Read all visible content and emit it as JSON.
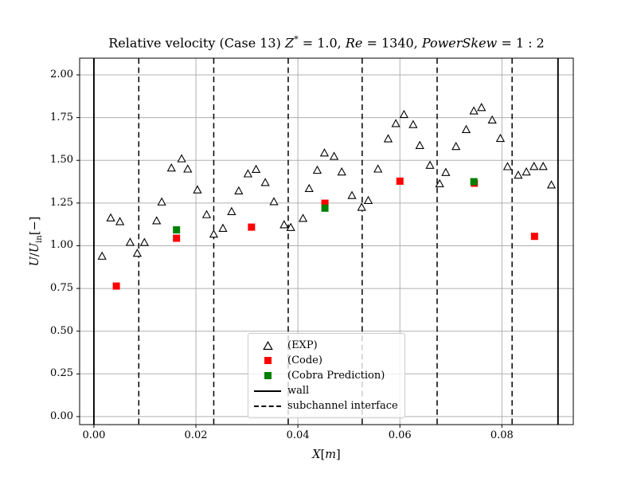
{
  "title": {
    "text": "Relative velocity (Case 13) Z* = 1.0, Re = 1340, PowerSkew = 1:2",
    "parts": [
      {
        "t": "Relative velocity (Case 13) "
      },
      {
        "t": "Z",
        "i": 1
      },
      {
        "t": "*",
        "sup": 1
      },
      {
        "t": " = 1.0, "
      },
      {
        "t": "Re",
        "i": 1
      },
      {
        "t": " = 1340, "
      },
      {
        "t": "PowerSkew",
        "i": 1
      },
      {
        "t": " = 1 : 2"
      }
    ]
  },
  "legend": {
    "items": [
      {
        "label": "(EXP)",
        "marker": "open-triangle"
      },
      {
        "label": "(Code)",
        "marker": "red-square"
      },
      {
        "label": "(Cobra Prediction)",
        "marker": "green-square"
      },
      {
        "label": "wall",
        "marker": "solid-line"
      },
      {
        "label": "subchannel interface",
        "marker": "dashed-line"
      }
    ]
  },
  "chart_data": {
    "type": "scatter",
    "title": "Relative velocity (Case 13) Z* = 1.0, Re = 1340, PowerSkew = 1:2",
    "xlabel": "X[m]",
    "ylabel": "U/U_in[−]",
    "xlim": [
      -0.0028,
      0.094
    ],
    "ylim": [
      -0.047,
      2.098
    ],
    "grid": true,
    "x_ticks": [
      0.0,
      0.02,
      0.04,
      0.06,
      0.08
    ],
    "y_ticks": [
      0.0,
      0.25,
      0.5,
      0.75,
      1.0,
      1.25,
      1.5,
      1.75,
      2.0
    ],
    "x_tick_labels": [
      "0.00",
      "0.02",
      "0.04",
      "0.06",
      "0.08"
    ],
    "y_tick_labels": [
      "0.00",
      "0.25",
      "0.50",
      "0.75",
      "1.00",
      "1.25",
      "1.50",
      "1.75",
      "2.00"
    ],
    "colors": {
      "grid": "#b0b0b0",
      "exp": "#000000",
      "code": "#ff0000",
      "cobra": "#008000",
      "wall": "#000000"
    },
    "vlines": {
      "wall": {
        "style": "solid",
        "x": [
          0.0,
          0.091
        ]
      },
      "subchannel_interface": {
        "style": "dashed",
        "x": [
          0.0088,
          0.0235,
          0.0381,
          0.0526,
          0.0673,
          0.082
        ]
      }
    },
    "series": [
      {
        "name": "(EXP)",
        "marker": "open-triangle",
        "color": "#000000",
        "points": [
          [
            0.0016,
            0.938
          ],
          [
            0.0033,
            1.162
          ],
          [
            0.0051,
            1.14
          ],
          [
            0.0071,
            1.019
          ],
          [
            0.0085,
            0.955
          ],
          [
            0.0099,
            1.018
          ],
          [
            0.0123,
            1.145
          ],
          [
            0.0133,
            1.255
          ],
          [
            0.0152,
            1.454
          ],
          [
            0.0172,
            1.508
          ],
          [
            0.0184,
            1.448
          ],
          [
            0.0203,
            1.326
          ],
          [
            0.0221,
            1.181
          ],
          [
            0.0235,
            1.067
          ],
          [
            0.0253,
            1.101
          ],
          [
            0.027,
            1.199
          ],
          [
            0.0284,
            1.32
          ],
          [
            0.0302,
            1.42
          ],
          [
            0.0318,
            1.446
          ],
          [
            0.0336,
            1.369
          ],
          [
            0.0353,
            1.257
          ],
          [
            0.0373,
            1.122
          ],
          [
            0.0386,
            1.106
          ],
          [
            0.041,
            1.159
          ],
          [
            0.0422,
            1.334
          ],
          [
            0.0438,
            1.441
          ],
          [
            0.0452,
            1.542
          ],
          [
            0.0471,
            1.522
          ],
          [
            0.0486,
            1.431
          ],
          [
            0.0506,
            1.293
          ],
          [
            0.0525,
            1.224
          ],
          [
            0.0538,
            1.264
          ],
          [
            0.0557,
            1.448
          ],
          [
            0.0577,
            1.625
          ],
          [
            0.0592,
            1.714
          ],
          [
            0.0608,
            1.767
          ],
          [
            0.0626,
            1.708
          ],
          [
            0.0639,
            1.586
          ],
          [
            0.0659,
            1.47
          ],
          [
            0.0678,
            1.362
          ],
          [
            0.069,
            1.428
          ],
          [
            0.071,
            1.58
          ],
          [
            0.073,
            1.679
          ],
          [
            0.0745,
            1.788
          ],
          [
            0.076,
            1.808
          ],
          [
            0.0781,
            1.735
          ],
          [
            0.0797,
            1.627
          ],
          [
            0.0811,
            1.462
          ],
          [
            0.0832,
            1.412
          ],
          [
            0.0848,
            1.431
          ],
          [
            0.0863,
            1.463
          ],
          [
            0.0881,
            1.463
          ],
          [
            0.0897,
            1.355
          ]
        ]
      },
      {
        "name": "(Code)",
        "marker": "square",
        "color": "#ff0000",
        "points": [
          [
            0.0044,
            0.764
          ],
          [
            0.0162,
            1.044
          ],
          [
            0.0309,
            1.109
          ],
          [
            0.0453,
            1.249
          ],
          [
            0.06,
            1.378
          ],
          [
            0.0746,
            1.366
          ],
          [
            0.0864,
            1.055
          ]
        ]
      },
      {
        "name": "(Cobra Prediction)",
        "marker": "square",
        "color": "#008000",
        "points": [
          [
            0.0162,
            1.093
          ],
          [
            0.0453,
            1.22
          ],
          [
            0.0745,
            1.375
          ]
        ]
      }
    ]
  },
  "ylabel_parts": [
    {
      "t": "U",
      "i": 1
    },
    {
      "t": "/"
    },
    {
      "t": "U",
      "i": 1
    },
    {
      "t": "in",
      "sub": 1
    },
    {
      "t": "[−]"
    }
  ],
  "xlabel_parts": [
    {
      "t": "X",
      "i": 1
    },
    {
      "t": "["
    },
    {
      "t": "m",
      "i": 1
    },
    {
      "t": "]"
    }
  ]
}
